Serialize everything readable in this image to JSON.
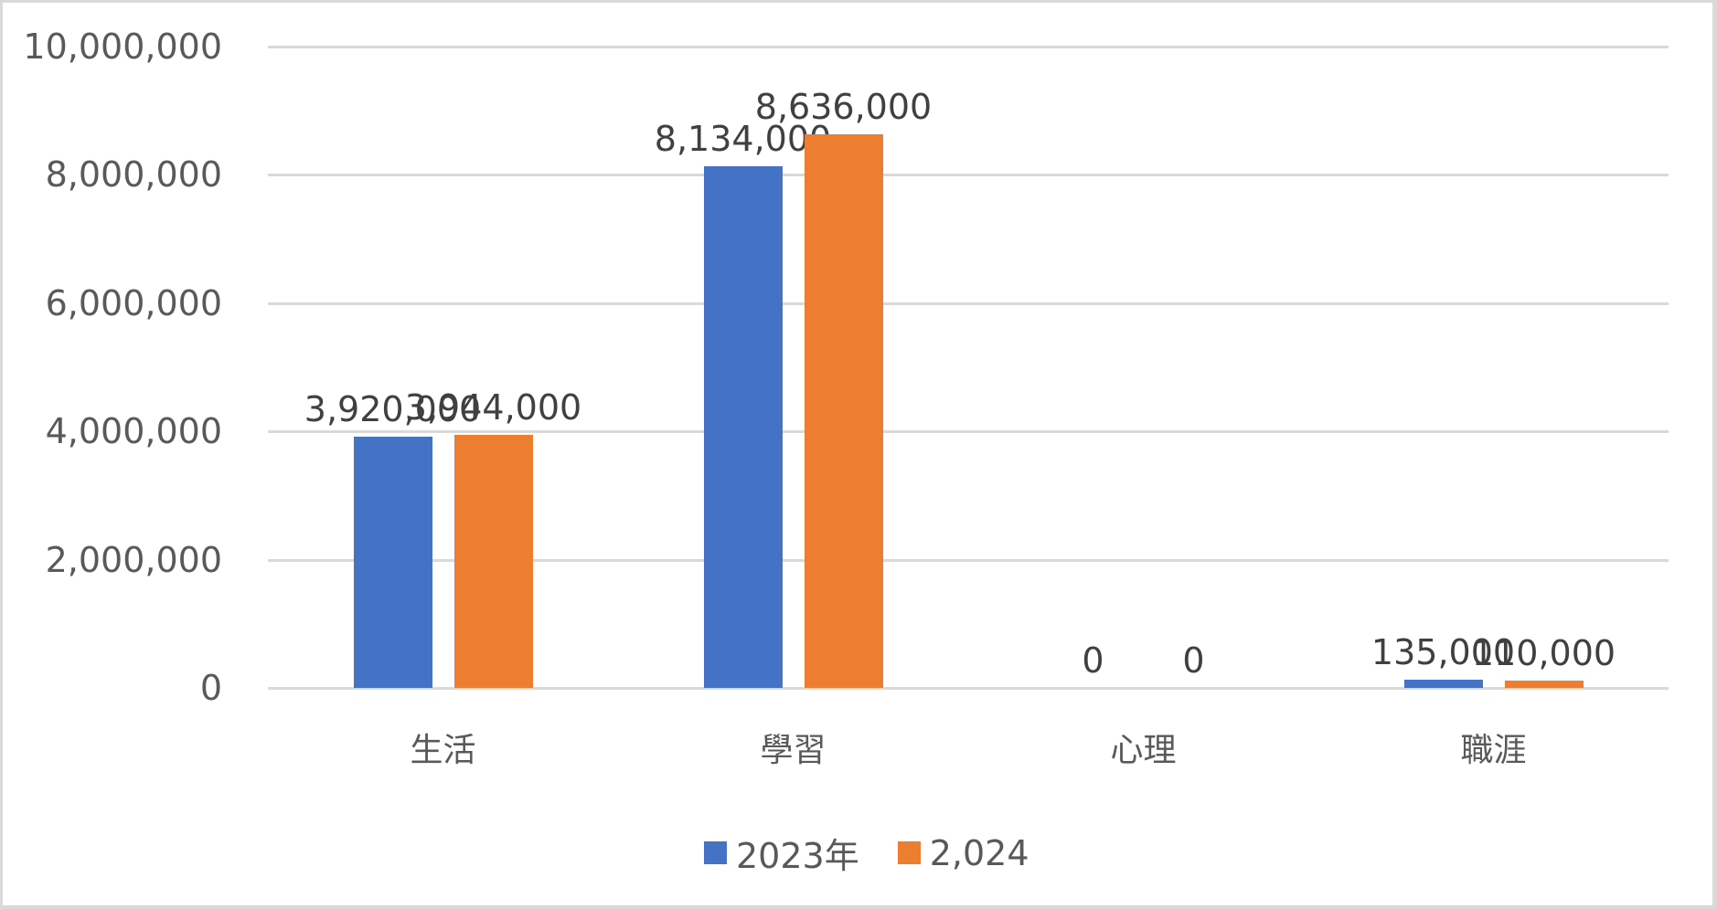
{
  "chart_data": {
    "type": "bar",
    "title": "",
    "xlabel": "",
    "ylabel": "",
    "categories": [
      "生活",
      "學習",
      "心理",
      "職涯"
    ],
    "series": [
      {
        "name": "2023年",
        "color": "#4472c4",
        "values": [
          3920000,
          8134000,
          0,
          135000
        ],
        "labels": [
          "3,920,000",
          "8,134,000",
          "0",
          "135,000"
        ]
      },
      {
        "name": "2,024",
        "color": "#ed7d31",
        "values": [
          3944000,
          8636000,
          0,
          110000
        ],
        "labels": [
          "3,944,000",
          "8,636,000",
          "0",
          "110,000"
        ]
      }
    ],
    "ylim": [
      0,
      10000000
    ],
    "yticks": [
      "0",
      "2,000,000",
      "4,000,000",
      "6,000,000",
      "8,000,000",
      "10,000,000"
    ],
    "grid": true,
    "legend_position": "bottom"
  }
}
